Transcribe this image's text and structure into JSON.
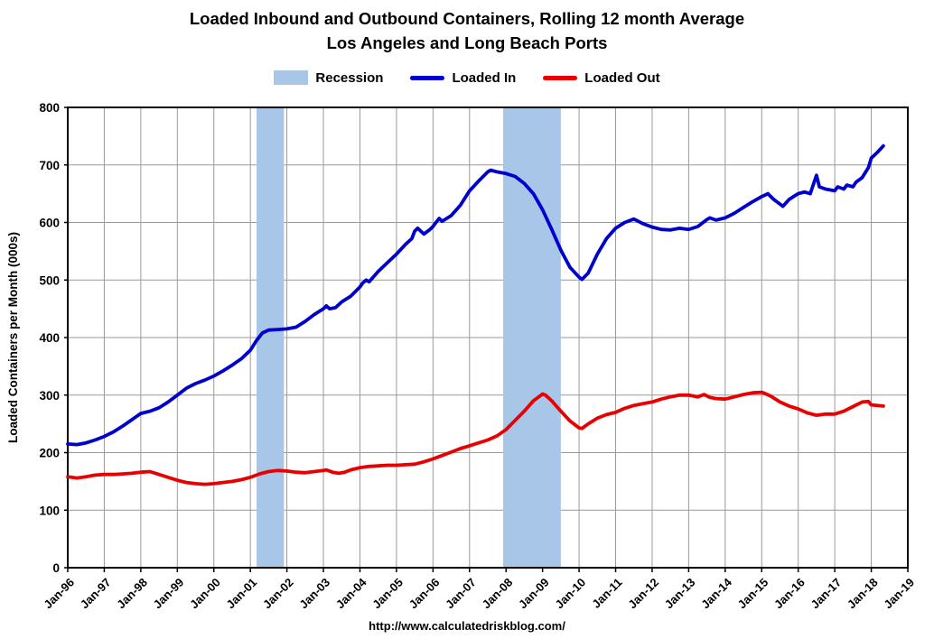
{
  "footer": {
    "url": "http://www.calculatedriskblog.com/"
  },
  "colors": {
    "recession_band": "#A8C6E8",
    "grid": "#9A9A9A",
    "axis": "#000000",
    "background": "#FFFFFF"
  },
  "chart_data": {
    "type": "line",
    "title": "Loaded Inbound and Outbound Containers, Rolling 12 month Average",
    "subtitle": "Los Angeles and Long Beach Ports",
    "ylabel": "Loaded Containers per Month (000s)",
    "ylim": [
      0,
      800
    ],
    "ytick_step": 100,
    "xlim": [
      1996,
      2019
    ],
    "x_tick_labels": [
      "Jan-96",
      "Jan-97",
      "Jan-98",
      "Jan-99",
      "Jan-00",
      "Jan-01",
      "Jan-02",
      "Jan-03",
      "Jan-04",
      "Jan-05",
      "Jan-06",
      "Jan-07",
      "Jan-08",
      "Jan-09",
      "Jan-10",
      "Jan-11",
      "Jan-12",
      "Jan-13",
      "Jan-14",
      "Jan-15",
      "Jan-16",
      "Jan-17",
      "Jan-18",
      "Jan-19"
    ],
    "grid": true,
    "legend_position": "top",
    "recession_label": "Recession",
    "recession_bands": [
      {
        "start": 2001.17,
        "end": 2001.92
      },
      {
        "start": 2007.92,
        "end": 2009.5
      }
    ],
    "series": [
      {
        "name": "Loaded In",
        "color": "#0000CD",
        "x": [
          1996.0,
          1996.25,
          1996.5,
          1996.75,
          1997.0,
          1997.25,
          1997.5,
          1997.75,
          1998.0,
          1998.25,
          1998.5,
          1998.75,
          1999.0,
          1999.25,
          1999.5,
          1999.75,
          2000.0,
          2000.25,
          2000.5,
          2000.75,
          2001.0,
          2001.17,
          2001.33,
          2001.5,
          2001.75,
          2002.0,
          2002.25,
          2002.5,
          2002.75,
          2003.0,
          2003.08,
          2003.17,
          2003.33,
          2003.5,
          2003.75,
          2004.0,
          2004.08,
          2004.17,
          2004.25,
          2004.5,
          2004.75,
          2005.0,
          2005.25,
          2005.42,
          2005.5,
          2005.58,
          2005.75,
          2005.92,
          2006.0,
          2006.08,
          2006.17,
          2006.25,
          2006.5,
          2006.75,
          2007.0,
          2007.25,
          2007.5,
          2007.58,
          2007.75,
          2008.0,
          2008.25,
          2008.5,
          2008.75,
          2009.0,
          2009.25,
          2009.5,
          2009.75,
          2010.0,
          2010.08,
          2010.25,
          2010.5,
          2010.75,
          2011.0,
          2011.25,
          2011.5,
          2011.75,
          2012.0,
          2012.25,
          2012.5,
          2012.75,
          2013.0,
          2013.25,
          2013.5,
          2013.58,
          2013.75,
          2014.0,
          2014.25,
          2014.5,
          2014.75,
          2015.0,
          2015.17,
          2015.33,
          2015.5,
          2015.58,
          2015.75,
          2015.92,
          2016.0,
          2016.17,
          2016.33,
          2016.5,
          2016.58,
          2016.75,
          2017.0,
          2017.08,
          2017.25,
          2017.33,
          2017.5,
          2017.58,
          2017.75,
          2017.92,
          2018.0,
          2018.17,
          2018.33
        ],
        "values": [
          215,
          214,
          217,
          222,
          228,
          236,
          246,
          257,
          268,
          272,
          278,
          288,
          300,
          312,
          320,
          326,
          333,
          342,
          352,
          363,
          378,
          395,
          408,
          413,
          414,
          415,
          418,
          428,
          440,
          450,
          455,
          450,
          452,
          462,
          472,
          488,
          495,
          500,
          497,
          515,
          530,
          545,
          562,
          572,
          585,
          590,
          580,
          588,
          593,
          600,
          607,
          602,
          612,
          630,
          655,
          672,
          688,
          691,
          688,
          685,
          680,
          668,
          650,
          622,
          588,
          552,
          522,
          505,
          501,
          512,
          545,
          572,
          590,
          600,
          606,
          598,
          592,
          588,
          587,
          590,
          588,
          593,
          605,
          608,
          604,
          608,
          616,
          626,
          636,
          645,
          650,
          640,
          632,
          628,
          640,
          647,
          650,
          653,
          650,
          682,
          662,
          658,
          655,
          662,
          658,
          665,
          662,
          670,
          678,
          695,
          712,
          722,
          733
        ]
      },
      {
        "name": "Loaded Out",
        "color": "#E80000",
        "x": [
          1996.0,
          1996.25,
          1996.5,
          1996.75,
          1997.0,
          1997.25,
          1997.5,
          1997.75,
          1998.0,
          1998.25,
          1998.5,
          1998.75,
          1999.0,
          1999.25,
          1999.5,
          1999.75,
          2000.0,
          2000.25,
          2000.5,
          2000.75,
          2001.0,
          2001.25,
          2001.5,
          2001.75,
          2002.0,
          2002.25,
          2002.5,
          2002.75,
          2003.0,
          2003.08,
          2003.25,
          2003.42,
          2003.58,
          2003.75,
          2004.0,
          2004.25,
          2004.5,
          2004.75,
          2005.0,
          2005.25,
          2005.5,
          2005.75,
          2006.0,
          2006.25,
          2006.5,
          2006.75,
          2007.0,
          2007.25,
          2007.5,
          2007.75,
          2008.0,
          2008.25,
          2008.5,
          2008.75,
          2008.92,
          2009.0,
          2009.08,
          2009.25,
          2009.5,
          2009.75,
          2010.0,
          2010.08,
          2010.25,
          2010.5,
          2010.75,
          2011.0,
          2011.25,
          2011.5,
          2011.75,
          2012.0,
          2012.25,
          2012.5,
          2012.75,
          2013.0,
          2013.25,
          2013.42,
          2013.58,
          2013.75,
          2014.0,
          2014.25,
          2014.5,
          2014.75,
          2015.0,
          2015.08,
          2015.25,
          2015.5,
          2015.75,
          2016.0,
          2016.25,
          2016.5,
          2016.75,
          2017.0,
          2017.25,
          2017.5,
          2017.75,
          2017.92,
          2018.0,
          2018.33
        ],
        "values": [
          158,
          156,
          158,
          161,
          162,
          162,
          163,
          164,
          166,
          167,
          162,
          157,
          152,
          148,
          146,
          145,
          146,
          148,
          150,
          153,
          157,
          163,
          167,
          169,
          168,
          166,
          165,
          167,
          169,
          170,
          166,
          164,
          166,
          170,
          174,
          176,
          177,
          178,
          178,
          179,
          180,
          184,
          189,
          195,
          201,
          207,
          212,
          217,
          222,
          229,
          240,
          256,
          272,
          290,
          298,
          302,
          300,
          290,
          272,
          255,
          243,
          242,
          250,
          260,
          266,
          270,
          277,
          282,
          285,
          288,
          293,
          297,
          300,
          300,
          297,
          301,
          296,
          294,
          293,
          297,
          301,
          304,
          305,
          303,
          298,
          288,
          281,
          276,
          269,
          265,
          267,
          267,
          272,
          280,
          288,
          289,
          283,
          281
        ]
      }
    ]
  }
}
